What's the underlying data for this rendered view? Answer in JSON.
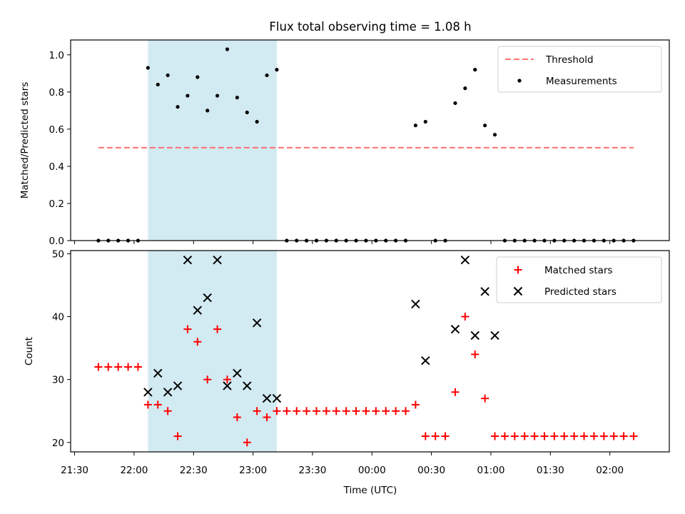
{
  "chart_data": {
    "title": "Flux total observing time = 1.08 h",
    "xlabel": "Time (UTC)",
    "x_ticks": [
      "21:30",
      "22:00",
      "22:30",
      "23:00",
      "23:30",
      "00:00",
      "00:30",
      "01:00",
      "01:30",
      "02:00"
    ],
    "xlim": [
      "21:28",
      "02:30"
    ],
    "observing_window": [
      "22:07",
      "23:12"
    ],
    "colors": {
      "window": "#add8e6",
      "threshold": "#ff7070",
      "matched": "#ff0000",
      "predicted": "#000000",
      "measurements": "#000000"
    },
    "panels": [
      {
        "type": "scatter",
        "ylabel": "Matched/Predicted stars",
        "ylim": [
          0,
          1.08
        ],
        "y_ticks": [
          "0.0",
          "0.2",
          "0.4",
          "0.6",
          "0.8",
          "1.0"
        ],
        "legend": "top-right",
        "threshold": {
          "name": "Threshold",
          "y": 0.5,
          "x": [
            "21:42",
            "02:12"
          ]
        },
        "series": [
          {
            "name": "Measurements",
            "points": [
              [
                "21:42",
                0
              ],
              [
                "21:47",
                0
              ],
              [
                "21:52",
                0
              ],
              [
                "21:57",
                0
              ],
              [
                "22:02",
                0
              ],
              [
                "22:07",
                0.93
              ],
              [
                "22:12",
                0.84
              ],
              [
                "22:17",
                0.89
              ],
              [
                "22:22",
                0.72
              ],
              [
                "22:27",
                0.78
              ],
              [
                "22:32",
                0.88
              ],
              [
                "22:37",
                0.7
              ],
              [
                "22:42",
                0.78
              ],
              [
                "22:47",
                1.03
              ],
              [
                "22:52",
                0.77
              ],
              [
                "22:57",
                0.69
              ],
              [
                "23:02",
                0.64
              ],
              [
                "23:07",
                0.89
              ],
              [
                "23:12",
                0.92
              ],
              [
                "23:17",
                0
              ],
              [
                "23:22",
                0
              ],
              [
                "23:27",
                0
              ],
              [
                "23:32",
                0
              ],
              [
                "23:37",
                0
              ],
              [
                "23:42",
                0
              ],
              [
                "23:47",
                0
              ],
              [
                "23:52",
                0
              ],
              [
                "23:57",
                0
              ],
              [
                "00:02",
                0
              ],
              [
                "00:07",
                0
              ],
              [
                "00:12",
                0
              ],
              [
                "00:17",
                0
              ],
              [
                "00:22",
                0.62
              ],
              [
                "00:27",
                0.64
              ],
              [
                "00:32",
                0
              ],
              [
                "00:37",
                0
              ],
              [
                "00:42",
                0.74
              ],
              [
                "00:47",
                0.82
              ],
              [
                "00:52",
                0.92
              ],
              [
                "00:57",
                0.62
              ],
              [
                "01:02",
                0.57
              ],
              [
                "01:07",
                0
              ],
              [
                "01:12",
                0
              ],
              [
                "01:17",
                0
              ],
              [
                "01:22",
                0
              ],
              [
                "01:27",
                0
              ],
              [
                "01:32",
                0
              ],
              [
                "01:37",
                0
              ],
              [
                "01:42",
                0
              ],
              [
                "01:47",
                0
              ],
              [
                "01:52",
                0
              ],
              [
                "01:57",
                0
              ],
              [
                "02:02",
                0
              ],
              [
                "02:07",
                0
              ],
              [
                "02:12",
                0
              ]
            ]
          }
        ]
      },
      {
        "type": "scatter",
        "ylabel": "Count",
        "ylim": [
          18.5,
          50.5
        ],
        "y_ticks": [
          "20",
          "30",
          "40",
          "50"
        ],
        "legend": "top-right",
        "series": [
          {
            "name": "Matched stars",
            "marker": "+",
            "points": [
              [
                "21:42",
                32
              ],
              [
                "21:47",
                32
              ],
              [
                "21:52",
                32
              ],
              [
                "21:57",
                32
              ],
              [
                "22:02",
                32
              ],
              [
                "22:07",
                26
              ],
              [
                "22:12",
                26
              ],
              [
                "22:17",
                25
              ],
              [
                "22:22",
                21
              ],
              [
                "22:27",
                38
              ],
              [
                "22:32",
                36
              ],
              [
                "22:37",
                30
              ],
              [
                "22:42",
                38
              ],
              [
                "22:47",
                30
              ],
              [
                "22:52",
                24
              ],
              [
                "22:57",
                20
              ],
              [
                "23:02",
                25
              ],
              [
                "23:07",
                24
              ],
              [
                "23:12",
                25
              ],
              [
                "23:17",
                25
              ],
              [
                "23:22",
                25
              ],
              [
                "23:27",
                25
              ],
              [
                "23:32",
                25
              ],
              [
                "23:37",
                25
              ],
              [
                "23:42",
                25
              ],
              [
                "23:47",
                25
              ],
              [
                "23:52",
                25
              ],
              [
                "23:57",
                25
              ],
              [
                "00:02",
                25
              ],
              [
                "00:07",
                25
              ],
              [
                "00:12",
                25
              ],
              [
                "00:17",
                25
              ],
              [
                "00:22",
                26
              ],
              [
                "00:27",
                21
              ],
              [
                "00:32",
                21
              ],
              [
                "00:37",
                21
              ],
              [
                "00:42",
                28
              ],
              [
                "00:47",
                40
              ],
              [
                "00:52",
                34
              ],
              [
                "00:57",
                27
              ],
              [
                "01:02",
                21
              ],
              [
                "01:07",
                21
              ],
              [
                "01:12",
                21
              ],
              [
                "01:17",
                21
              ],
              [
                "01:22",
                21
              ],
              [
                "01:27",
                21
              ],
              [
                "01:32",
                21
              ],
              [
                "01:37",
                21
              ],
              [
                "01:42",
                21
              ],
              [
                "01:47",
                21
              ],
              [
                "01:52",
                21
              ],
              [
                "01:57",
                21
              ],
              [
                "02:02",
                21
              ],
              [
                "02:07",
                21
              ],
              [
                "02:12",
                21
              ]
            ]
          },
          {
            "name": "Predicted stars",
            "marker": "x",
            "points": [
              [
                "22:07",
                28
              ],
              [
                "22:12",
                31
              ],
              [
                "22:17",
                28
              ],
              [
                "22:22",
                29
              ],
              [
                "22:27",
                49
              ],
              [
                "22:32",
                41
              ],
              [
                "22:37",
                43
              ],
              [
                "22:42",
                49
              ],
              [
                "22:47",
                29
              ],
              [
                "22:52",
                31
              ],
              [
                "22:57",
                29
              ],
              [
                "23:02",
                39
              ],
              [
                "23:07",
                27
              ],
              [
                "23:12",
                27
              ],
              [
                "00:22",
                42
              ],
              [
                "00:27",
                33
              ],
              [
                "00:42",
                38
              ],
              [
                "00:47",
                49
              ],
              [
                "00:52",
                37
              ],
              [
                "00:57",
                44
              ],
              [
                "01:02",
                37
              ]
            ]
          }
        ]
      }
    ]
  }
}
